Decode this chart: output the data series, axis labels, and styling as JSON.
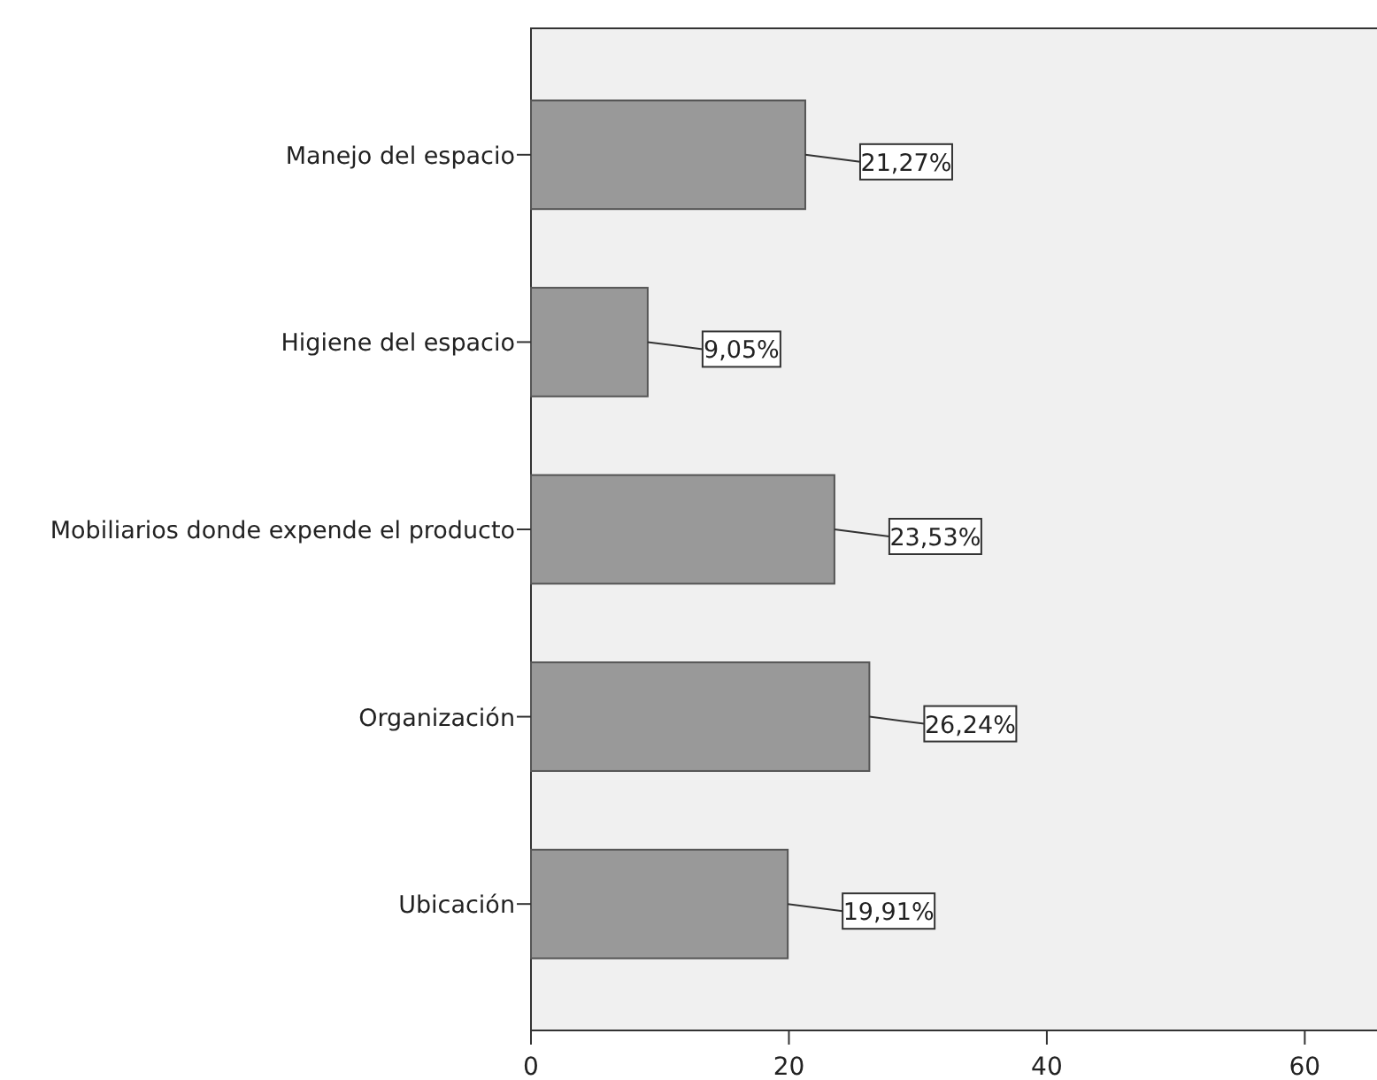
{
  "chart_data": {
    "type": "bar",
    "orientation": "horizontal",
    "categories": [
      "Manejo del espacio",
      "Higiene del espacio",
      "Mobiliarios donde expende el producto",
      "Organización",
      "Ubicación"
    ],
    "values": [
      21.27,
      9.05,
      23.53,
      26.24,
      19.91
    ],
    "value_labels": [
      "21,27%",
      "9,05%",
      "23,53%",
      "26,24%",
      "19,91%"
    ],
    "color": "#999999",
    "xlim": [
      0,
      65.6
    ],
    "xticks": [
      0,
      20,
      40,
      60
    ],
    "grid": false
  }
}
